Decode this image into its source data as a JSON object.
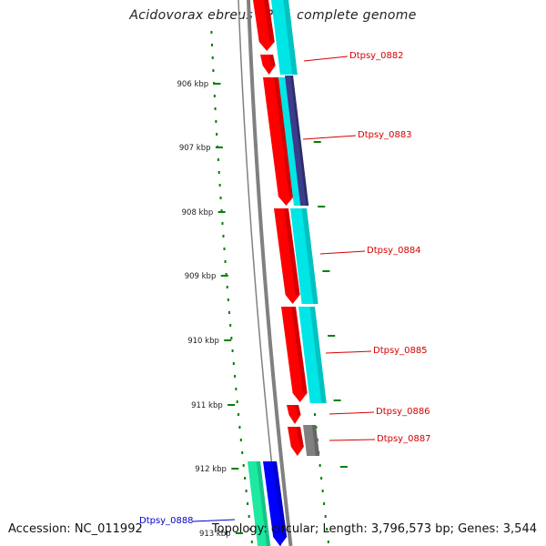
{
  "title": "Acidovorax ebreus TPSY, complete genome",
  "footer": {
    "accession": "Accession: NC_011992",
    "summary": "Topology: circular; Length: 3,796,573 bp; Genes: 3,544"
  },
  "axis": {
    "ticks": [
      "906 kbp",
      "907 kbp",
      "908 kbp",
      "909 kbp",
      "910 kbp",
      "911 kbp",
      "912 kbp",
      "913 kbp"
    ]
  },
  "gene_labels": [
    {
      "id": "Dtpsy_0882",
      "color": "#d40000"
    },
    {
      "id": "Dtpsy_0883",
      "color": "#d40000"
    },
    {
      "id": "Dtpsy_0884",
      "color": "#d40000"
    },
    {
      "id": "Dtpsy_0885",
      "color": "#d40000"
    },
    {
      "id": "Dtpsy_0886",
      "color": "#d40000"
    },
    {
      "id": "Dtpsy_0887",
      "color": "#d40000"
    },
    {
      "id": "Dtpsy_0888",
      "color": "#0000cc"
    }
  ],
  "colors": {
    "backbone": "#808080",
    "scale_dots": "#008000",
    "cds_forward": "#ff0000",
    "cds_forward_dark": "#b30000",
    "cds_reverse": "#00e5e5",
    "cds_purple": "#3c3c8c",
    "cds_grey": "#808080",
    "cds_green": "#1de9a0",
    "cds_blue": "#0000ff"
  }
}
